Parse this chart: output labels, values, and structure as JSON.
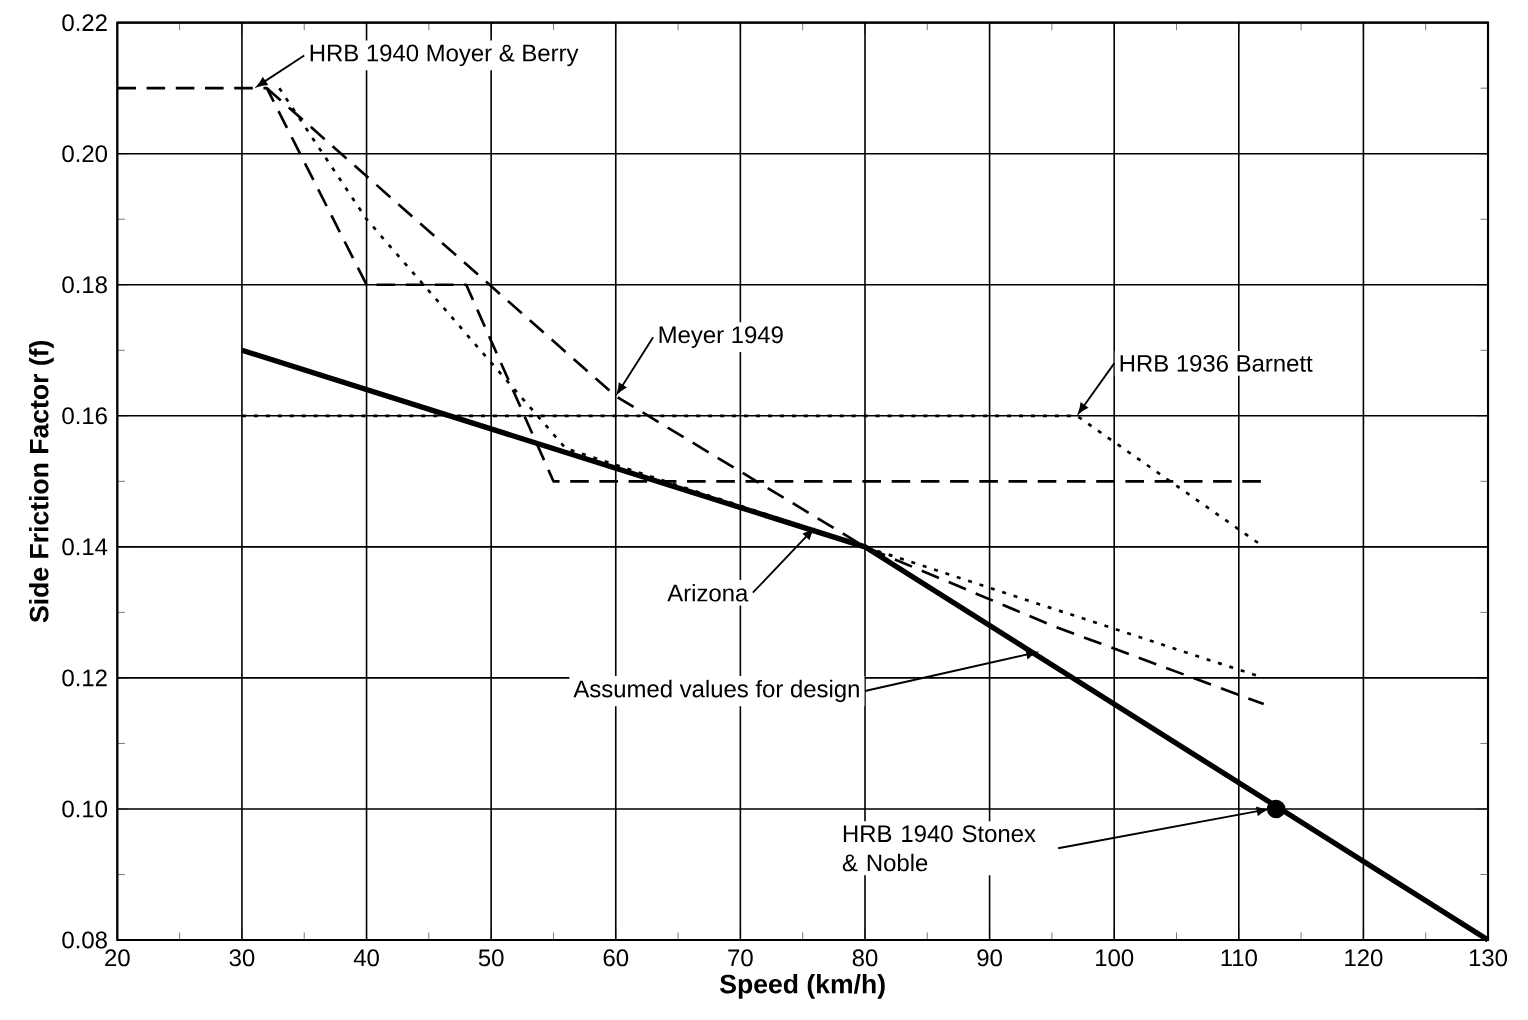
{
  "chart_data": {
    "type": "line",
    "xlabel": "Speed (km/h)",
    "ylabel": "Side Friction Factor (f)",
    "xlim": [
      20,
      130
    ],
    "xticks": [
      20,
      30,
      40,
      50,
      60,
      70,
      80,
      90,
      100,
      110,
      120,
      130
    ],
    "ylim": [
      0.08,
      0.22
    ],
    "yticks": [
      0.08,
      {
        "value": 0.1,
        "label": "0.10"
      },
      0.12,
      0.14,
      0.16,
      0.18,
      {
        "value": 0.2,
        "label": "0.20"
      },
      0.22
    ],
    "grid": true,
    "series": [
      {
        "color": "#000000",
        "line_style": "solid",
        "x": [
          30,
          80,
          130
        ],
        "values": [
          0.17,
          0.14,
          0.08
        ]
      },
      {
        "color": "#000000",
        "line_style": "dashed",
        "x": [
          20,
          32,
          40,
          48,
          55,
          112
        ],
        "values": [
          0.21,
          0.21,
          0.18,
          0.18,
          0.15,
          0.15
        ]
      },
      {
        "color": "#000000",
        "line_style": "dashed",
        "x": [
          32,
          60,
          80,
          95,
          112
        ],
        "values": [
          0.21,
          0.163,
          0.14,
          0.128,
          0.116
        ]
      },
      {
        "color": "#000000",
        "line_style": "dotted",
        "x": [
          30,
          97,
          112
        ],
        "values": [
          0.16,
          0.16,
          0.14
        ]
      },
      {
        "color": "#000000",
        "line_style": "dotted",
        "x": [
          33,
          40,
          56,
          80,
          112
        ],
        "values": [
          0.21,
          0.19,
          0.155,
          0.14,
          0.12
        ]
      },
      {
        "type": "scatter",
        "marker": "circle",
        "color": "#000000",
        "x": [
          113
        ],
        "values": [
          0.1
        ]
      }
    ],
    "annotations": [
      {
        "text": "HRB 1940 Moyer & Berry",
        "x": 31,
        "y": 0.21
      },
      {
        "text": "Meyer 1949",
        "x": 60,
        "y": 0.163
      },
      {
        "text": "HRB 1936 Barnett",
        "x": 97,
        "y": 0.16
      },
      {
        "text": "Arizona",
        "x": 76,
        "y": 0.143
      },
      {
        "text": "Assumed values for design",
        "x": 94,
        "y": 0.124
      },
      {
        "text": "HRB 1940 Stonex & Noble",
        "x": 112.5,
        "y": 0.1
      }
    ]
  }
}
